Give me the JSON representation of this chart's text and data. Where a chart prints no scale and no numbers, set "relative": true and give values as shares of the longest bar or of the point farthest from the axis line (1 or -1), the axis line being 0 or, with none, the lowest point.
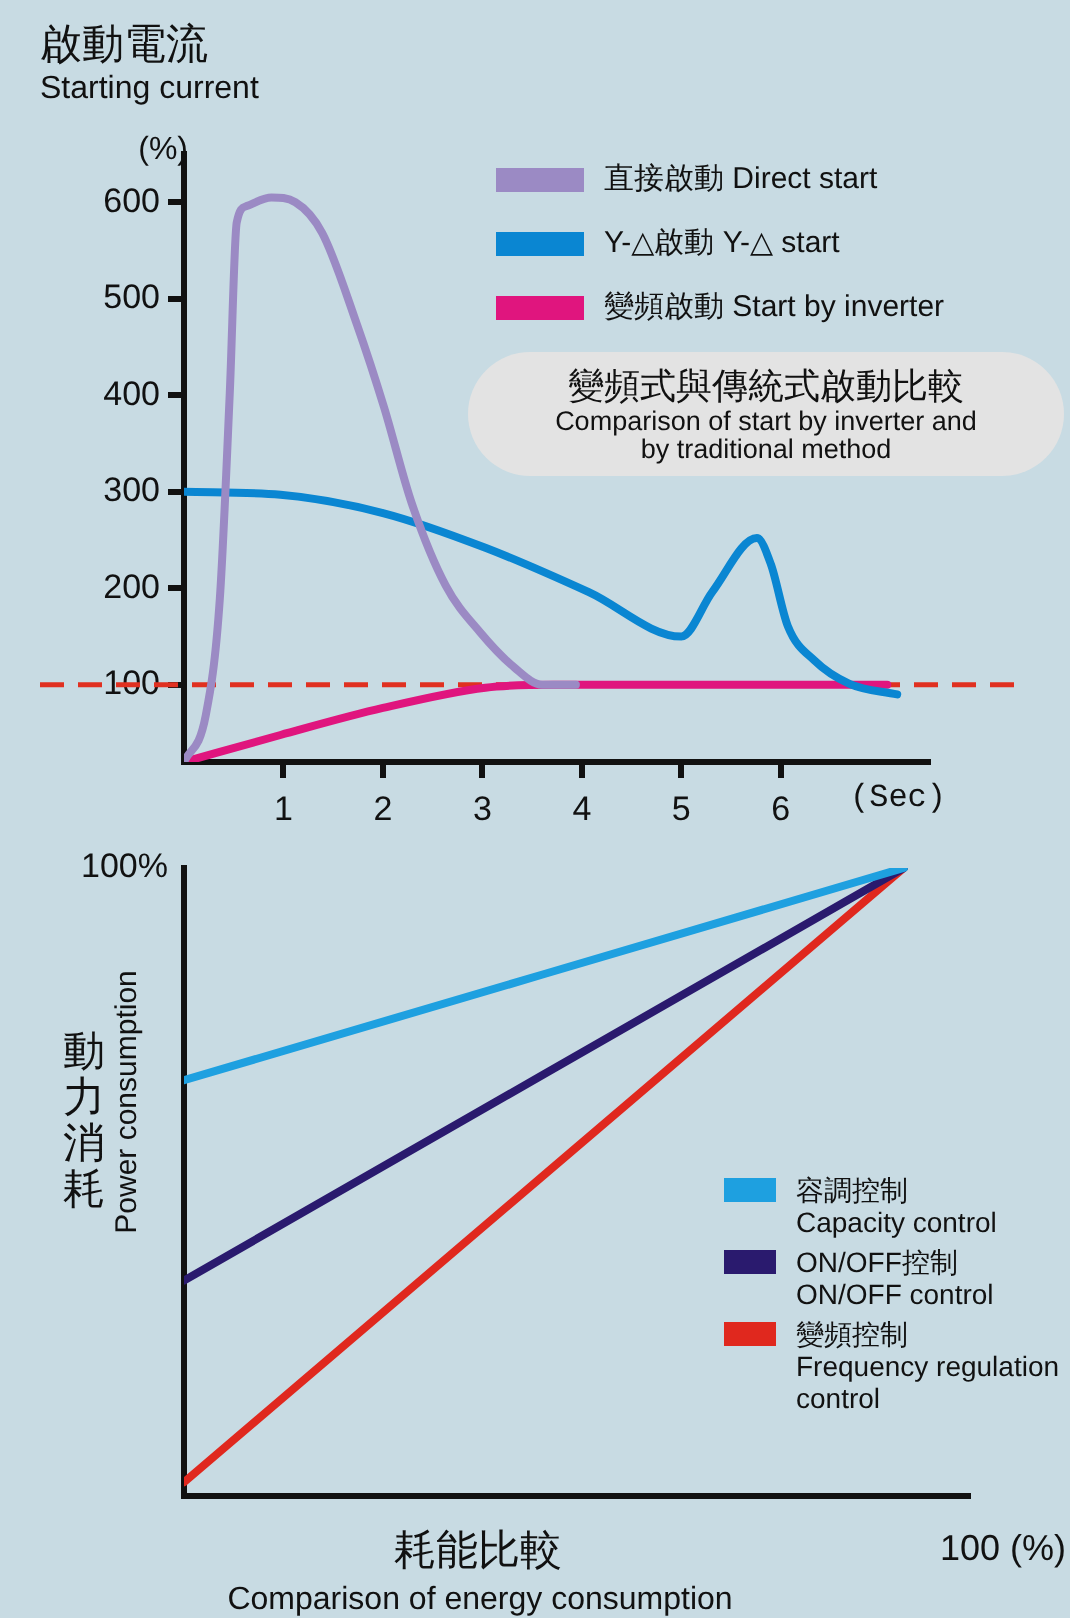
{
  "chart_data": [
    {
      "type": "line",
      "title": "啟動電流",
      "subtitle": "Starting current",
      "xlabel": "(Sec)",
      "ylabel": "(%)",
      "xlim": [
        0,
        7.5
      ],
      "xticks": [
        1,
        2,
        3,
        4,
        5,
        6
      ],
      "ylim": [
        20,
        650
      ],
      "yticks": [
        100,
        200,
        300,
        400,
        500,
        600
      ],
      "legend": "top right",
      "series": [
        {
          "name": "直接啟動  Direct start",
          "color": "#9b8ac4",
          "x": [
            0,
            0.22,
            0.36,
            0.46,
            0.53,
            0.63,
            0.88,
            1.12,
            1.39,
            1.74,
            2.01,
            2.29,
            2.63,
            2.98,
            3.32,
            3.6,
            3.94
          ],
          "values": [
            20,
            69,
            189,
            402,
            579,
            596,
            605,
            600,
            568,
            473,
            388,
            288,
            203,
            154,
            118,
            100,
            100
          ]
        },
        {
          "name": "Y-△啟動  Y-△ start",
          "color": "#0a86d2",
          "x": [
            0,
            0.97,
            2.0,
            3.03,
            4.07,
            5.0,
            5.31,
            5.76,
            5.9,
            6.07,
            6.34,
            6.69,
            7.17
          ],
          "values": [
            300,
            297,
            278,
            242,
            196,
            150,
            196,
            252,
            225,
            161,
            125,
            101,
            90
          ]
        },
        {
          "name": "變頻啟動  Start by inverter",
          "color": "#e0157e",
          "x": [
            0,
            0.97,
            2.0,
            3.03,
            3.72,
            7.07
          ],
          "values": [
            20,
            48,
            76,
            97,
            100,
            100
          ]
        }
      ],
      "ref_lines": [
        {
          "axis": "y",
          "value": 100,
          "color": "#e03020",
          "line_style": "dashed"
        }
      ],
      "annotations": [
        "變頻式與傳統式啟動比較\nComparison of start by inverter and by traditional method"
      ]
    },
    {
      "type": "line",
      "relative": true,
      "categories": [
        null,
        null
      ],
      "xlabel": "耗能比較\nComparison of energy consumption",
      "ylabel": "動力消耗\nPower consumption",
      "legend": "right",
      "series": [
        {
          "name": "容調控制\nCapacity control",
          "color": "#1ea0e0",
          "values": [
            0.662,
            1
          ]
        },
        {
          "name": "ON/OFF控制\nON/OFF control",
          "color": "#2a1a6e",
          "values": [
            0.343,
            1
          ]
        },
        {
          "name": "變頻控制\nFrequency regulation control",
          "color": "#e0281e",
          "values": [
            0.022,
            1
          ]
        }
      ],
      "annotations": [
        "100%",
        "100 (%)"
      ]
    }
  ]
}
